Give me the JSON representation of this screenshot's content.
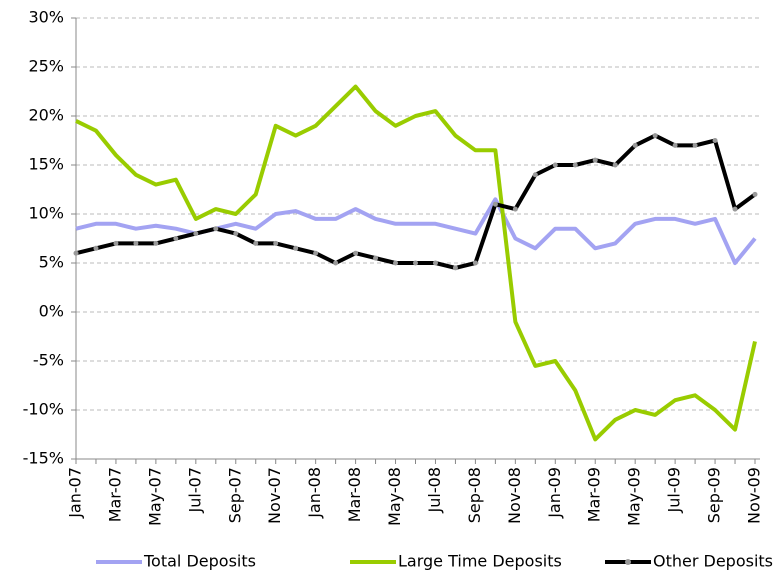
{
  "chart_data": {
    "type": "line",
    "categories": [
      "Jan-07",
      null,
      "Mar-07",
      null,
      "May-07",
      null,
      "Jul-07",
      null,
      "Sep-07",
      null,
      "Nov-07",
      null,
      "Jan-08",
      null,
      "Mar-08",
      null,
      "May-08",
      null,
      "Jul-08",
      null,
      "Sep-08",
      null,
      "Nov-08",
      null,
      "Jan-09",
      null,
      "Mar-09",
      null,
      "May-09",
      null,
      "Jul-09",
      null,
      "Sep-09",
      null,
      "Nov-09"
    ],
    "series": [
      {
        "name": "Total Deposits",
        "color": "#a3a3f2",
        "values": [
          8.5,
          9,
          9,
          8.5,
          8.8,
          8.5,
          8,
          8.5,
          9,
          8.5,
          10,
          10.3,
          9.5,
          9.5,
          10.5,
          9.5,
          9,
          9,
          9,
          8.5,
          8,
          11.5,
          7.5,
          6.5,
          8.5,
          8.5,
          6.5,
          7,
          9,
          9.5,
          9.5,
          9,
          9.5,
          5,
          7.5
        ]
      },
      {
        "name": "Large Time Deposits",
        "color": "#99cc00",
        "values": [
          19.5,
          18.5,
          16,
          14,
          13,
          13.5,
          9.5,
          10.5,
          10,
          12,
          19,
          18,
          19,
          21,
          23,
          20.5,
          19,
          20,
          20.5,
          18,
          16.5,
          16.5,
          -1,
          -5.5,
          -5,
          -8,
          -13,
          -11,
          -10,
          -10.5,
          -9,
          -8.5,
          -10,
          -12,
          -3
        ]
      },
      {
        "name": "Other Deposits",
        "color": "#000000",
        "values": [
          6,
          6.5,
          7,
          7,
          7,
          7.5,
          8,
          8.5,
          8,
          7,
          7,
          6.5,
          6,
          5,
          6,
          5.5,
          5,
          5,
          5,
          4.5,
          5,
          11,
          10.5,
          14,
          15,
          15,
          15.5,
          15,
          17,
          18,
          17,
          17,
          17.5,
          10.5,
          12
        ]
      }
    ],
    "ylim": [
      -15,
      30
    ],
    "yticks": [
      {
        "value": -15,
        "label": "-15%"
      },
      {
        "value": -10,
        "label": "-10%"
      },
      {
        "value": -5,
        "label": "-5%"
      },
      {
        "value": 0,
        "label": "0%"
      },
      {
        "value": 5,
        "label": "5%"
      },
      {
        "value": 10,
        "label": "10%"
      },
      {
        "value": 15,
        "label": "15%"
      },
      {
        "value": 20,
        "label": "20%"
      },
      {
        "value": 25,
        "label": "25%"
      },
      {
        "value": 30,
        "label": "30%"
      }
    ],
    "grid": true
  }
}
